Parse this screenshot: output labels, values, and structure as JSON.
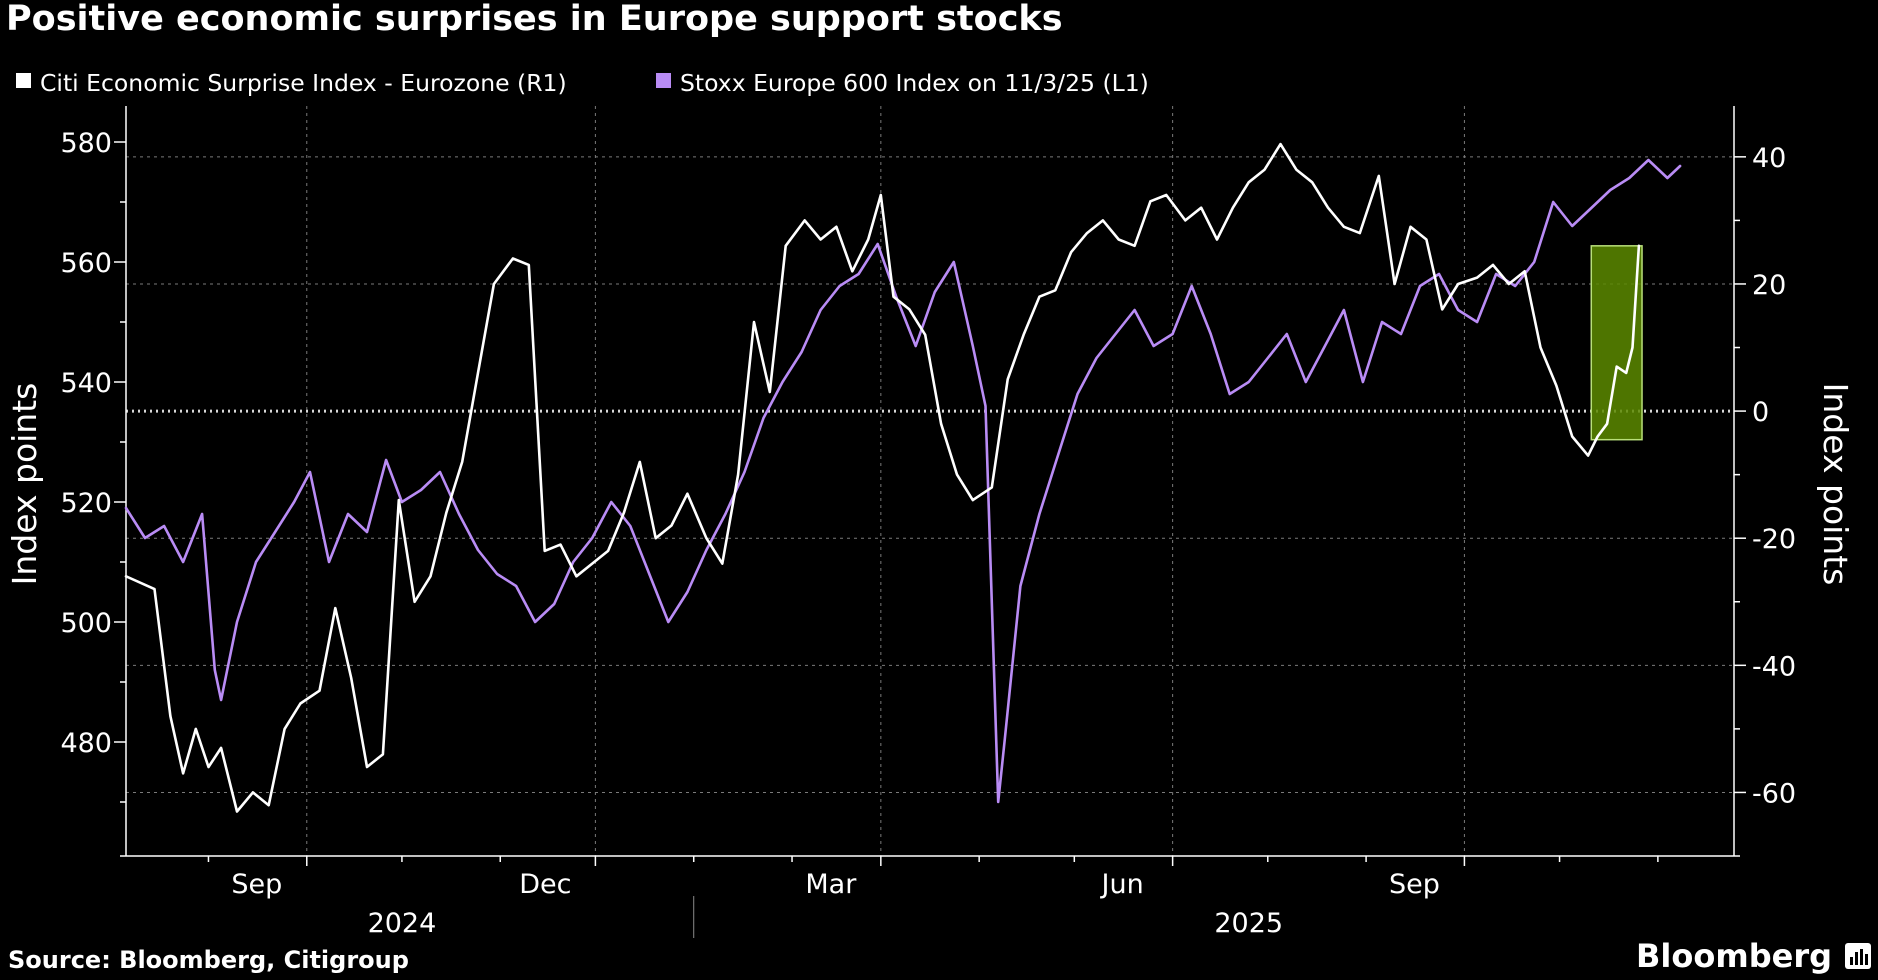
{
  "chart_data": {
    "type": "line",
    "title": "Positive economic surprises in Europe support stocks",
    "source": "Source: Bloomberg, Citigroup",
    "brand": "Bloomberg",
    "colors": {
      "background": "#000000",
      "citi": "#ffffff",
      "stoxx": "#b98cf5",
      "highlight": "#5c8a00",
      "highlight_border": "#b9e07a",
      "grid": "#7a7a7a"
    },
    "legend": [
      {
        "name": "Citi Economic Surprise Index - Eurozone (R1)",
        "color": "#ffffff"
      },
      {
        "name": "Stoxx Europe 600 Index on 11/3/25 (L1)",
        "color": "#b98cf5"
      }
    ],
    "left_axis": {
      "label": "Index points",
      "ticks": [
        480,
        500,
        520,
        540,
        560,
        580
      ],
      "ylim": [
        461,
        586
      ]
    },
    "right_axis": {
      "label": "Index points",
      "ticks": [
        -60,
        -40,
        -20,
        0,
        20,
        40
      ],
      "ylim": [
        -70,
        48
      ]
    },
    "x_axis": {
      "range": [
        "2024-07-06",
        "2025-11-25"
      ],
      "month_ticks": [
        {
          "label": "Sep",
          "date": "2024-09-01"
        },
        {
          "label": "Dec",
          "date": "2024-12-01"
        },
        {
          "label": "Mar",
          "date": "2025-03-01"
        },
        {
          "label": "Jun",
          "date": "2025-06-01"
        },
        {
          "label": "Sep",
          "date": "2025-09-01"
        }
      ],
      "minor_ticks": [
        "2024-08-01",
        "2024-10-01",
        "2024-11-01",
        "2025-01-01",
        "2025-02-01",
        "2025-04-01",
        "2025-05-01",
        "2025-07-01",
        "2025-08-01",
        "2025-10-01",
        "2025-11-01"
      ],
      "year_labels": [
        {
          "label": "2024",
          "date": "2024-10-01"
        },
        {
          "label": "2025",
          "date": "2025-06-25"
        }
      ],
      "year_divider": "2025-01-01"
    },
    "highlight": {
      "x_start": "2025-10-11",
      "x_end": "2025-10-27",
      "y_bottom": -4.5,
      "y_top": 26
    },
    "series": [
      {
        "name": "Citi Economic Surprise Index - Eurozone (R1)",
        "axis": "right",
        "color": "#ffffff",
        "x": [
          "2024-07-06",
          "2024-07-15",
          "2024-07-20",
          "2024-07-24",
          "2024-07-28",
          "2024-08-01",
          "2024-08-05",
          "2024-08-10",
          "2024-08-15",
          "2024-08-20",
          "2024-08-25",
          "2024-08-30",
          "2024-09-05",
          "2024-09-10",
          "2024-09-15",
          "2024-09-20",
          "2024-09-25",
          "2024-09-30",
          "2024-10-05",
          "2024-10-10",
          "2024-10-15",
          "2024-10-20",
          "2024-10-25",
          "2024-10-30",
          "2024-11-05",
          "2024-11-10",
          "2024-11-15",
          "2024-11-20",
          "2024-11-25",
          "2024-11-30",
          "2024-12-05",
          "2024-12-10",
          "2024-12-15",
          "2024-12-20",
          "2024-12-25",
          "2024-12-30",
          "2025-01-05",
          "2025-01-10",
          "2025-01-15",
          "2025-01-20",
          "2025-01-25",
          "2025-01-30",
          "2025-02-05",
          "2025-02-10",
          "2025-02-15",
          "2025-02-20",
          "2025-02-25",
          "2025-03-01",
          "2025-03-05",
          "2025-03-10",
          "2025-03-15",
          "2025-03-20",
          "2025-03-25",
          "2025-03-30",
          "2025-04-05",
          "2025-04-10",
          "2025-04-15",
          "2025-04-20",
          "2025-04-25",
          "2025-04-30",
          "2025-05-05",
          "2025-05-10",
          "2025-05-15",
          "2025-05-20",
          "2025-05-25",
          "2025-05-30",
          "2025-06-05",
          "2025-06-10",
          "2025-06-15",
          "2025-06-20",
          "2025-06-25",
          "2025-06-30",
          "2025-07-05",
          "2025-07-10",
          "2025-07-15",
          "2025-07-20",
          "2025-07-25",
          "2025-07-30",
          "2025-08-05",
          "2025-08-10",
          "2025-08-15",
          "2025-08-20",
          "2025-08-25",
          "2025-08-30",
          "2025-09-05",
          "2025-09-10",
          "2025-09-15",
          "2025-09-20",
          "2025-09-25",
          "2025-09-30",
          "2025-10-05",
          "2025-10-10",
          "2025-10-13",
          "2025-10-16",
          "2025-10-19",
          "2025-10-22",
          "2025-10-24",
          "2025-10-26"
        ],
        "values": [
          -26,
          -28,
          -48,
          -57,
          -50,
          -56,
          -53,
          -63,
          -60,
          -62,
          -50,
          -46,
          -44,
          -31,
          -42,
          -56,
          -54,
          -14,
          -30,
          -26,
          -16,
          -8,
          6,
          20,
          24,
          23,
          -22,
          -21,
          -26,
          -24,
          -22,
          -16,
          -8,
          -20,
          -18,
          -13,
          -20,
          -24,
          -10,
          14,
          3,
          26,
          30,
          27,
          29,
          22,
          27,
          34,
          18,
          16,
          12,
          -2,
          -10,
          -14,
          -12,
          5,
          12,
          18,
          19,
          25,
          28,
          30,
          27,
          26,
          33,
          34,
          30,
          32,
          27,
          32,
          36,
          38,
          42,
          38,
          36,
          32,
          29,
          28,
          37,
          20,
          29,
          27,
          16,
          20,
          21,
          23,
          20,
          22,
          10,
          4,
          -4,
          -7,
          -4,
          -2,
          7,
          6,
          10,
          26
        ]
      },
      {
        "name": "Stoxx Europe 600 Index on 11/3/25 (L1)",
        "axis": "left",
        "color": "#b98cf5",
        "x": [
          "2024-07-06",
          "2024-07-12",
          "2024-07-18",
          "2024-07-24",
          "2024-07-30",
          "2024-08-03",
          "2024-08-05",
          "2024-08-10",
          "2024-08-16",
          "2024-08-22",
          "2024-08-28",
          "2024-09-02",
          "2024-09-08",
          "2024-09-14",
          "2024-09-20",
          "2024-09-26",
          "2024-10-01",
          "2024-10-07",
          "2024-10-13",
          "2024-10-19",
          "2024-10-25",
          "2024-10-31",
          "2024-11-06",
          "2024-11-12",
          "2024-11-18",
          "2024-11-24",
          "2024-11-30",
          "2024-12-06",
          "2024-12-12",
          "2024-12-18",
          "2024-12-24",
          "2024-12-30",
          "2025-01-05",
          "2025-01-11",
          "2025-01-17",
          "2025-01-23",
          "2025-01-29",
          "2025-02-04",
          "2025-02-10",
          "2025-02-16",
          "2025-02-22",
          "2025-02-28",
          "2025-03-06",
          "2025-03-12",
          "2025-03-18",
          "2025-03-24",
          "2025-03-30",
          "2025-04-03",
          "2025-04-07",
          "2025-04-09",
          "2025-04-14",
          "2025-04-20",
          "2025-04-26",
          "2025-05-02",
          "2025-05-08",
          "2025-05-14",
          "2025-05-20",
          "2025-05-26",
          "2025-06-01",
          "2025-06-07",
          "2025-06-13",
          "2025-06-19",
          "2025-06-25",
          "2025-07-01",
          "2025-07-07",
          "2025-07-13",
          "2025-07-19",
          "2025-07-25",
          "2025-07-31",
          "2025-08-06",
          "2025-08-12",
          "2025-08-18",
          "2025-08-24",
          "2025-08-30",
          "2025-09-05",
          "2025-09-11",
          "2025-09-17",
          "2025-09-23",
          "2025-09-29",
          "2025-10-05",
          "2025-10-11",
          "2025-10-17",
          "2025-10-23",
          "2025-10-29",
          "2025-11-04",
          "2025-11-08"
        ],
        "values": [
          519,
          514,
          516,
          510,
          518,
          492,
          487,
          500,
          510,
          515,
          520,
          525,
          510,
          518,
          515,
          527,
          520,
          522,
          525,
          518,
          512,
          508,
          506,
          500,
          503,
          510,
          514,
          520,
          516,
          508,
          500,
          505,
          512,
          518,
          525,
          534,
          540,
          545,
          552,
          556,
          558,
          563,
          554,
          546,
          555,
          560,
          546,
          536,
          470,
          480,
          506,
          518,
          528,
          538,
          544,
          548,
          552,
          546,
          548,
          556,
          548,
          538,
          540,
          544,
          548,
          540,
          546,
          552,
          540,
          550,
          548,
          556,
          558,
          552,
          550,
          558,
          556,
          560,
          570,
          566,
          569,
          572,
          574,
          577,
          574,
          576
        ]
      }
    ]
  }
}
